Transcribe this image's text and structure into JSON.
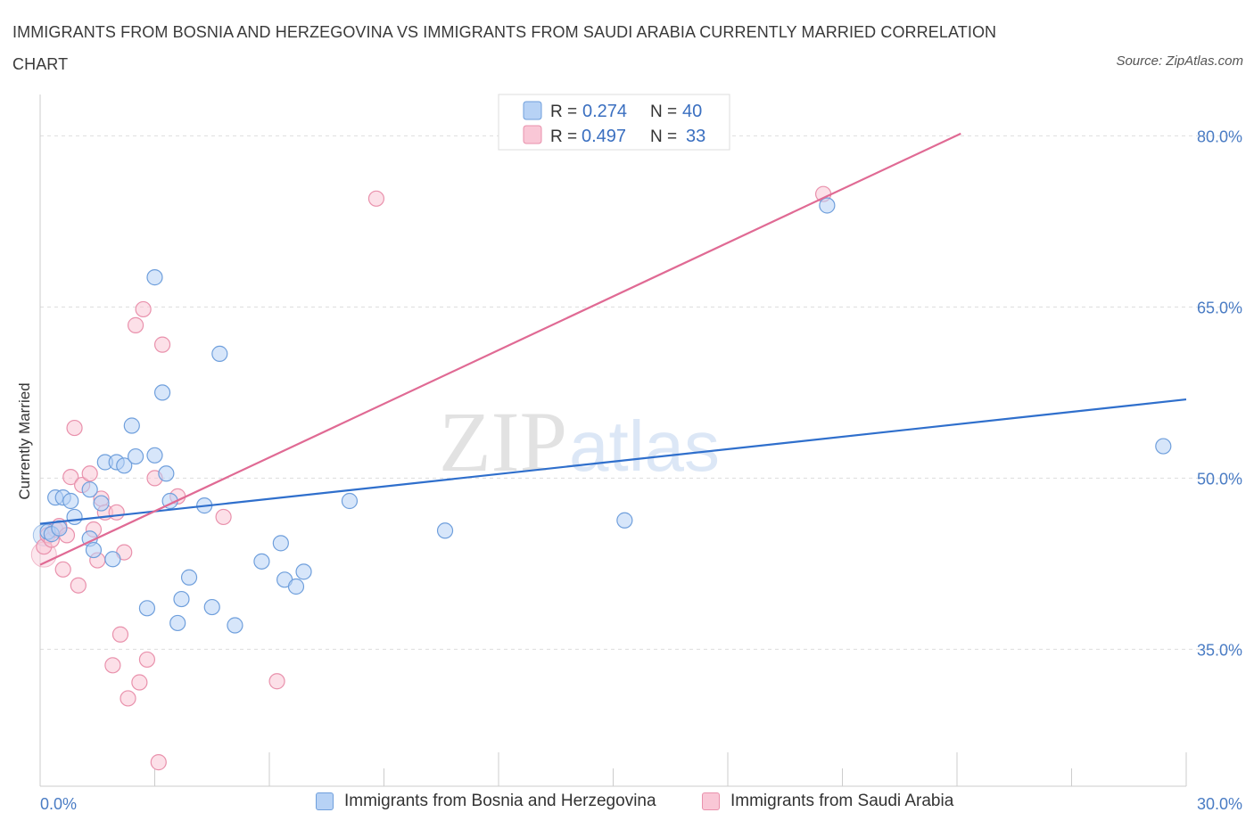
{
  "title": "IMMIGRANTS FROM BOSNIA AND HERZEGOVINA VS IMMIGRANTS FROM SAUDI ARABIA CURRENTLY MARRIED CORRELATION CHART",
  "source": "Source: ZipAtlas.com",
  "watermark": {
    "zip": "ZIP",
    "atlas": "atlas"
  },
  "colors": {
    "bosnia_fill": "#b7d2f5",
    "bosnia_stroke": "#6f9fdc",
    "bosnia_line": "#2f6fcc",
    "saudi_fill": "#f9c7d6",
    "saudi_stroke": "#e991ac",
    "saudi_line": "#e06a94",
    "tick": "#4a7cc4",
    "grid": "#dddddd"
  },
  "legend": {
    "rows": [
      {
        "r_label": "R =",
        "r_value": "0.274",
        "n_label": "N =",
        "n_value": "40"
      },
      {
        "r_label": "R =",
        "r_value": "0.497",
        "n_label": "N =",
        "n_value": "33"
      }
    ]
  },
  "bottom_legend": {
    "bosnia": "Immigrants from Bosnia and Herzegovina",
    "saudi": "Immigrants from Saudi Arabia"
  },
  "chart_data": {
    "type": "scatter",
    "title": "IMMIGRANTS FROM BOSNIA AND HERZEGOVINA VS IMMIGRANTS FROM SAUDI ARABIA CURRENTLY MARRIED CORRELATION CHART",
    "xlabel": "",
    "ylabel": "Currently Married",
    "xlim": [
      0,
      30
    ],
    "ylim": [
      23,
      83
    ],
    "x_tick_labels": [
      "0.0%",
      "30.0%"
    ],
    "y_ticks": [
      35,
      50,
      65,
      80
    ],
    "y_tick_labels": [
      "35.0%",
      "50.0%",
      "65.0%",
      "80.0%"
    ],
    "grid": true,
    "legend_position": "top-center",
    "series": [
      {
        "name": "Immigrants from Bosnia and Herzegovina",
        "r": 0.274,
        "n": 40,
        "trend": {
          "x": [
            0,
            30
          ],
          "y": [
            46.0,
            56.9
          ]
        },
        "points": [
          [
            0.2,
            45.3
          ],
          [
            0.3,
            45.1
          ],
          [
            0.5,
            45.6
          ],
          [
            0.4,
            48.3
          ],
          [
            0.6,
            48.3
          ],
          [
            0.8,
            48.0
          ],
          [
            0.9,
            46.6
          ],
          [
            1.3,
            44.7
          ],
          [
            1.3,
            49.0
          ],
          [
            1.4,
            43.7
          ],
          [
            1.6,
            47.8
          ],
          [
            1.7,
            51.4
          ],
          [
            1.9,
            42.9
          ],
          [
            2.0,
            51.4
          ],
          [
            2.2,
            51.1
          ],
          [
            2.4,
            54.6
          ],
          [
            2.5,
            51.9
          ],
          [
            2.8,
            38.6
          ],
          [
            3.0,
            52.0
          ],
          [
            3.0,
            67.6
          ],
          [
            3.2,
            57.5
          ],
          [
            3.3,
            50.4
          ],
          [
            3.4,
            48.0
          ],
          [
            3.6,
            37.3
          ],
          [
            3.7,
            39.4
          ],
          [
            3.9,
            41.3
          ],
          [
            4.3,
            47.6
          ],
          [
            4.5,
            38.7
          ],
          [
            4.7,
            60.9
          ],
          [
            5.1,
            37.1
          ],
          [
            5.8,
            42.7
          ],
          [
            6.3,
            44.3
          ],
          [
            6.4,
            41.1
          ],
          [
            6.7,
            40.5
          ],
          [
            6.9,
            41.8
          ],
          [
            8.1,
            48.0
          ],
          [
            10.6,
            45.4
          ],
          [
            15.3,
            46.3
          ],
          [
            20.6,
            73.9
          ],
          [
            29.4,
            52.8
          ]
        ]
      },
      {
        "name": "Immigrants from Saudi Arabia",
        "r": 0.497,
        "n": 33,
        "trend": {
          "x": [
            0,
            24.1
          ],
          "y": [
            42.4,
            80.2
          ]
        },
        "points": [
          [
            0.1,
            44.0
          ],
          [
            0.2,
            45.0
          ],
          [
            0.3,
            44.6
          ],
          [
            0.4,
            45.5
          ],
          [
            0.5,
            45.8
          ],
          [
            0.6,
            42.0
          ],
          [
            0.7,
            45.0
          ],
          [
            0.9,
            54.4
          ],
          [
            0.8,
            50.1
          ],
          [
            1.0,
            40.6
          ],
          [
            1.1,
            49.4
          ],
          [
            1.3,
            50.4
          ],
          [
            1.4,
            45.5
          ],
          [
            1.5,
            42.8
          ],
          [
            1.6,
            48.2
          ],
          [
            1.7,
            47.0
          ],
          [
            1.9,
            33.6
          ],
          [
            2.0,
            47.0
          ],
          [
            2.1,
            36.3
          ],
          [
            2.2,
            43.5
          ],
          [
            2.3,
            30.7
          ],
          [
            2.5,
            63.4
          ],
          [
            2.6,
            32.1
          ],
          [
            2.7,
            64.8
          ],
          [
            2.8,
            34.1
          ],
          [
            3.0,
            50.0
          ],
          [
            3.1,
            25.1
          ],
          [
            3.2,
            61.7
          ],
          [
            3.6,
            48.4
          ],
          [
            4.8,
            46.6
          ],
          [
            6.2,
            32.2
          ],
          [
            8.8,
            74.5
          ],
          [
            20.5,
            74.9
          ]
        ]
      }
    ]
  }
}
